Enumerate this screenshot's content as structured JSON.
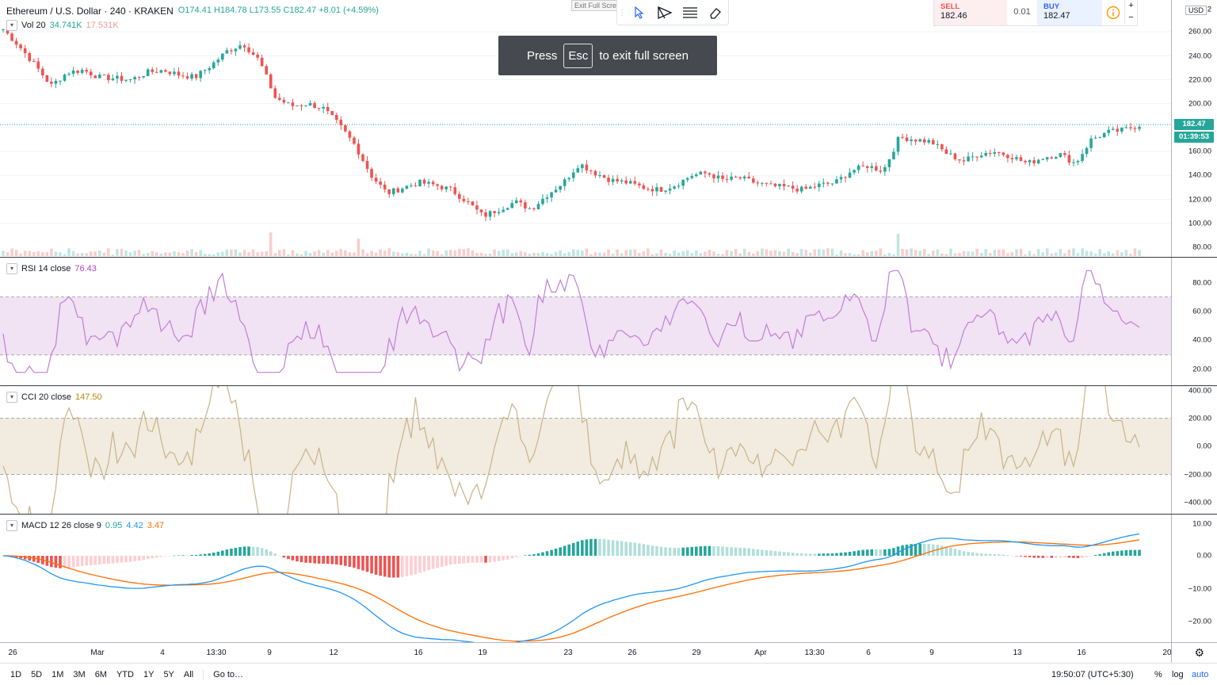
{
  "header": {
    "symbol": "Ethereum / U.S. Dollar · 240 · KRAKEN",
    "ohlc": "O174.41  H184.78  L173.55  C182.47  +8.01 (+4.59%)"
  },
  "fullscreen_hint": {
    "before": "Press",
    "key": "Esc",
    "after": "to exit full screen",
    "exit_label": "Exit Full Scre"
  },
  "trade": {
    "sell_label": "SELL",
    "sell_price": "182.46",
    "spread": "0.01",
    "buy_label": "BUY",
    "buy_price": "182.47",
    "plus": "+",
    "minus": "−"
  },
  "currency": "USD",
  "legends": {
    "vol": {
      "name": "Vol 20",
      "v1": "34.741K",
      "v2": "17.531K"
    },
    "rsi": {
      "name": "RSI 14 close",
      "v": "76.43"
    },
    "cci": {
      "name": "CCI 20 close",
      "v": "147.50"
    },
    "macd": {
      "name": "MACD 12 26 close 9",
      "v1": "0.95",
      "v2": "4.42",
      "v3": "3.47"
    }
  },
  "price_axis": [
    "260.00",
    "240.00",
    "220.00",
    "200.00",
    "160.00",
    "140.00",
    "120.00",
    "100.00",
    "80.00"
  ],
  "price_axis_top": "2",
  "rsi_axis": [
    "80.00",
    "60.00",
    "40.00",
    "20.00"
  ],
  "cci_axis": [
    "400.00",
    "200.00",
    "0.00",
    "−200.00",
    "−400.00"
  ],
  "macd_axis": [
    "10.00",
    "0.00",
    "−10.00",
    "−20.00"
  ],
  "last_price_label": "182.47",
  "countdown_label": "01:39:53",
  "time_axis": [
    "26",
    "Mar",
    "4",
    "13:30",
    "9",
    "12",
    "16",
    "19",
    "23",
    "26",
    "29",
    "Apr",
    "13:30",
    "6",
    "9",
    "13",
    "16",
    "20"
  ],
  "bottom": {
    "ranges": [
      "1D",
      "5D",
      "1M",
      "3M",
      "6M",
      "YTD",
      "1Y",
      "5Y",
      "All"
    ],
    "goto": "Go to…",
    "clock": "19:50:07 (UTC+5:30)",
    "pct": "%",
    "log": "log",
    "auto": "auto"
  },
  "colors": {
    "up": "#26a69a",
    "down": "#ef5350",
    "rsi": "#c07fd6",
    "cci": "#c9b38a",
    "macd": "#2196f3",
    "signal": "#ff6d00"
  },
  "chart_data": {
    "type": "candlestick",
    "close_approx": [
      262,
      248,
      232,
      215,
      226,
      228,
      222,
      221,
      220,
      226,
      228,
      224,
      222,
      232,
      244,
      250,
      236,
      205,
      198,
      200,
      196,
      182,
      165,
      140,
      125,
      130,
      134,
      132,
      128,
      118,
      106,
      112,
      118,
      112,
      124,
      134,
      150,
      142,
      136,
      134,
      130,
      128,
      132,
      140,
      142,
      136,
      138,
      134,
      131,
      130,
      128,
      132,
      134,
      144,
      148,
      144,
      172,
      170,
      168,
      158,
      152,
      158,
      160,
      156,
      150,
      155,
      158,
      150,
      170,
      176,
      178,
      182
    ]
  }
}
